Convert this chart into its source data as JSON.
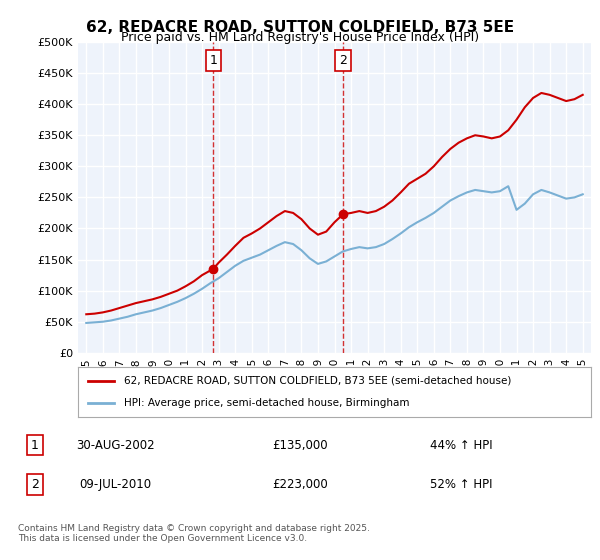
{
  "title": "62, REDACRE ROAD, SUTTON COLDFIELD, B73 5EE",
  "subtitle": "Price paid vs. HM Land Registry's House Price Index (HPI)",
  "legend_line1": "62, REDACRE ROAD, SUTTON COLDFIELD, B73 5EE (semi-detached house)",
  "legend_line2": "HPI: Average price, semi-detached house, Birmingham",
  "footnote": "Contains HM Land Registry data © Crown copyright and database right 2025.\nThis data is licensed under the Open Government Licence v3.0.",
  "transaction1_label": "1",
  "transaction1_date": "30-AUG-2002",
  "transaction1_price": "£135,000",
  "transaction1_hpi": "44% ↑ HPI",
  "transaction2_label": "2",
  "transaction2_date": "09-JUL-2010",
  "transaction2_price": "£223,000",
  "transaction2_hpi": "52% ↑ HPI",
  "marker1_x": 2002.67,
  "marker1_y": 135000,
  "marker2_x": 2010.52,
  "marker2_y": 223000,
  "vline1_x": 2002.67,
  "vline2_x": 2010.52,
  "xmin": 1994.5,
  "xmax": 2025.5,
  "ymin": 0,
  "ymax": 500000,
  "yticks": [
    0,
    50000,
    100000,
    150000,
    200000,
    250000,
    300000,
    350000,
    400000,
    450000,
    500000
  ],
  "ytick_labels": [
    "£0",
    "£50K",
    "£100K",
    "£150K",
    "£200K",
    "£250K",
    "£300K",
    "£350K",
    "£400K",
    "£450K",
    "£500K"
  ],
  "background_color": "#ffffff",
  "plot_bg_color": "#eef3fb",
  "grid_color": "#ffffff",
  "red_color": "#cc0000",
  "blue_color": "#7ab0d4",
  "vline_color": "#cc0000",
  "red_series_x": [
    1995.0,
    1995.5,
    1996.0,
    1996.5,
    1997.0,
    1997.5,
    1998.0,
    1998.5,
    1999.0,
    1999.5,
    2000.0,
    2000.5,
    2001.0,
    2001.5,
    2002.0,
    2002.67,
    2003.0,
    2003.5,
    2004.0,
    2004.5,
    2005.0,
    2005.5,
    2006.0,
    2006.5,
    2007.0,
    2007.5,
    2008.0,
    2008.5,
    2009.0,
    2009.5,
    2010.0,
    2010.52,
    2011.0,
    2011.5,
    2012.0,
    2012.5,
    2013.0,
    2013.5,
    2014.0,
    2014.5,
    2015.0,
    2015.5,
    2016.0,
    2016.5,
    2017.0,
    2017.5,
    2018.0,
    2018.5,
    2019.0,
    2019.5,
    2020.0,
    2020.5,
    2021.0,
    2021.5,
    2022.0,
    2022.5,
    2023.0,
    2023.5,
    2024.0,
    2024.5,
    2025.0
  ],
  "red_series_y": [
    62000,
    63000,
    65000,
    68000,
    72000,
    76000,
    80000,
    83000,
    86000,
    90000,
    95000,
    100000,
    107000,
    115000,
    125000,
    135000,
    145000,
    158000,
    172000,
    185000,
    192000,
    200000,
    210000,
    220000,
    228000,
    225000,
    215000,
    200000,
    190000,
    195000,
    210000,
    223000,
    225000,
    228000,
    225000,
    228000,
    235000,
    245000,
    258000,
    272000,
    280000,
    288000,
    300000,
    315000,
    328000,
    338000,
    345000,
    350000,
    348000,
    345000,
    348000,
    358000,
    375000,
    395000,
    410000,
    418000,
    415000,
    410000,
    405000,
    408000,
    415000
  ],
  "blue_series_x": [
    1995.0,
    1995.5,
    1996.0,
    1996.5,
    1997.0,
    1997.5,
    1998.0,
    1998.5,
    1999.0,
    1999.5,
    2000.0,
    2000.5,
    2001.0,
    2001.5,
    2002.0,
    2002.5,
    2003.0,
    2003.5,
    2004.0,
    2004.5,
    2005.0,
    2005.5,
    2006.0,
    2006.5,
    2007.0,
    2007.5,
    2008.0,
    2008.5,
    2009.0,
    2009.5,
    2010.0,
    2010.5,
    2011.0,
    2011.5,
    2012.0,
    2012.5,
    2013.0,
    2013.5,
    2014.0,
    2014.5,
    2015.0,
    2015.5,
    2016.0,
    2016.5,
    2017.0,
    2017.5,
    2018.0,
    2018.5,
    2019.0,
    2019.5,
    2020.0,
    2020.5,
    2021.0,
    2021.5,
    2022.0,
    2022.5,
    2023.0,
    2023.5,
    2024.0,
    2024.5,
    2025.0
  ],
  "blue_series_y": [
    48000,
    49000,
    50000,
    52000,
    55000,
    58000,
    62000,
    65000,
    68000,
    72000,
    77000,
    82000,
    88000,
    95000,
    103000,
    112000,
    120000,
    130000,
    140000,
    148000,
    153000,
    158000,
    165000,
    172000,
    178000,
    175000,
    165000,
    152000,
    143000,
    147000,
    155000,
    163000,
    167000,
    170000,
    168000,
    170000,
    175000,
    183000,
    192000,
    202000,
    210000,
    217000,
    225000,
    235000,
    245000,
    252000,
    258000,
    262000,
    260000,
    258000,
    260000,
    268000,
    230000,
    240000,
    255000,
    262000,
    258000,
    253000,
    248000,
    250000,
    255000
  ]
}
